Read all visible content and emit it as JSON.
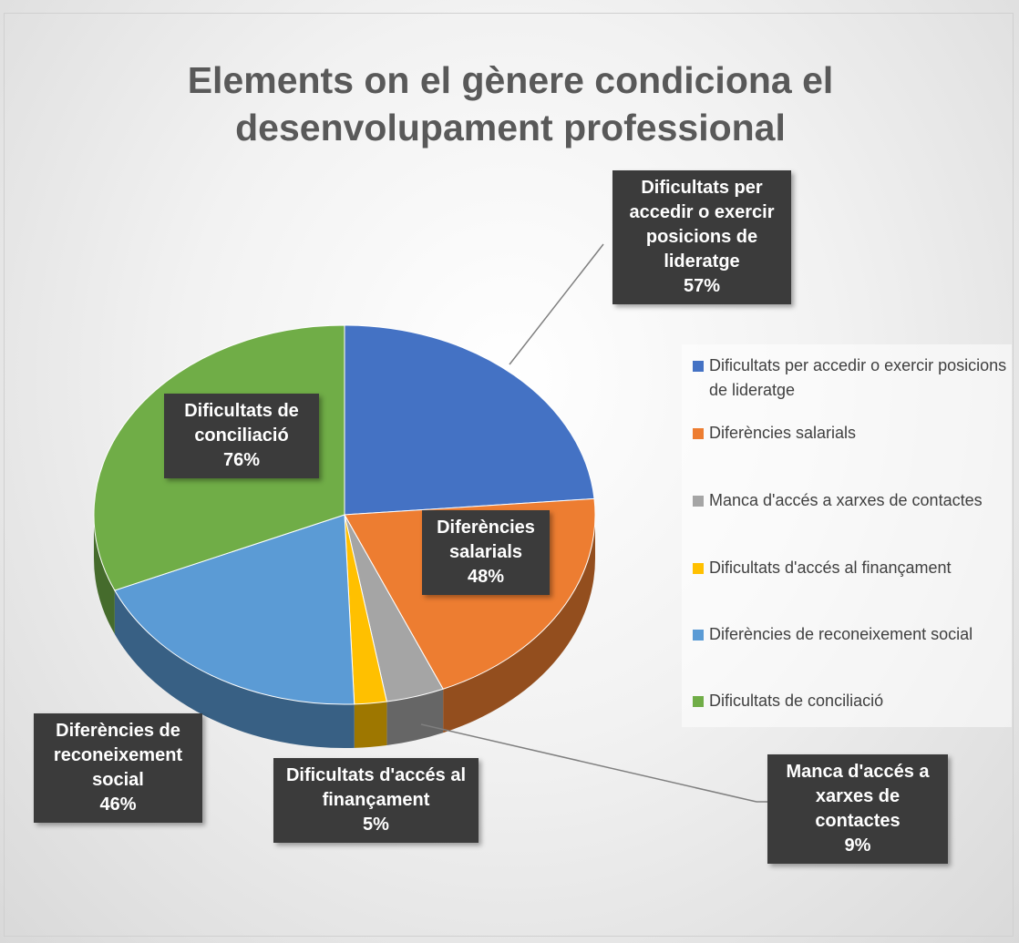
{
  "chart_data": {
    "type": "pie",
    "title": "Elements on el gènere condiciona el desenvolupament professional",
    "categories": [
      "Dificultats per accedir o exercir posicions de lideratge",
      "Diferències salarials",
      "Manca d'accés a xarxes de contactes",
      "Dificultats d'accés al finançament",
      "Diferències de reconeixement social",
      "Dificultats de conciliació"
    ],
    "values": [
      57,
      48,
      9,
      5,
      46,
      76
    ],
    "value_labels": [
      "57%",
      "48%",
      "9%",
      "5%",
      "46%",
      "76%"
    ],
    "colors": [
      "#4472c4",
      "#ed7d31",
      "#a5a5a5",
      "#ffc000",
      "#5b9bd5",
      "#70ad47"
    ],
    "legend": "right"
  }
}
